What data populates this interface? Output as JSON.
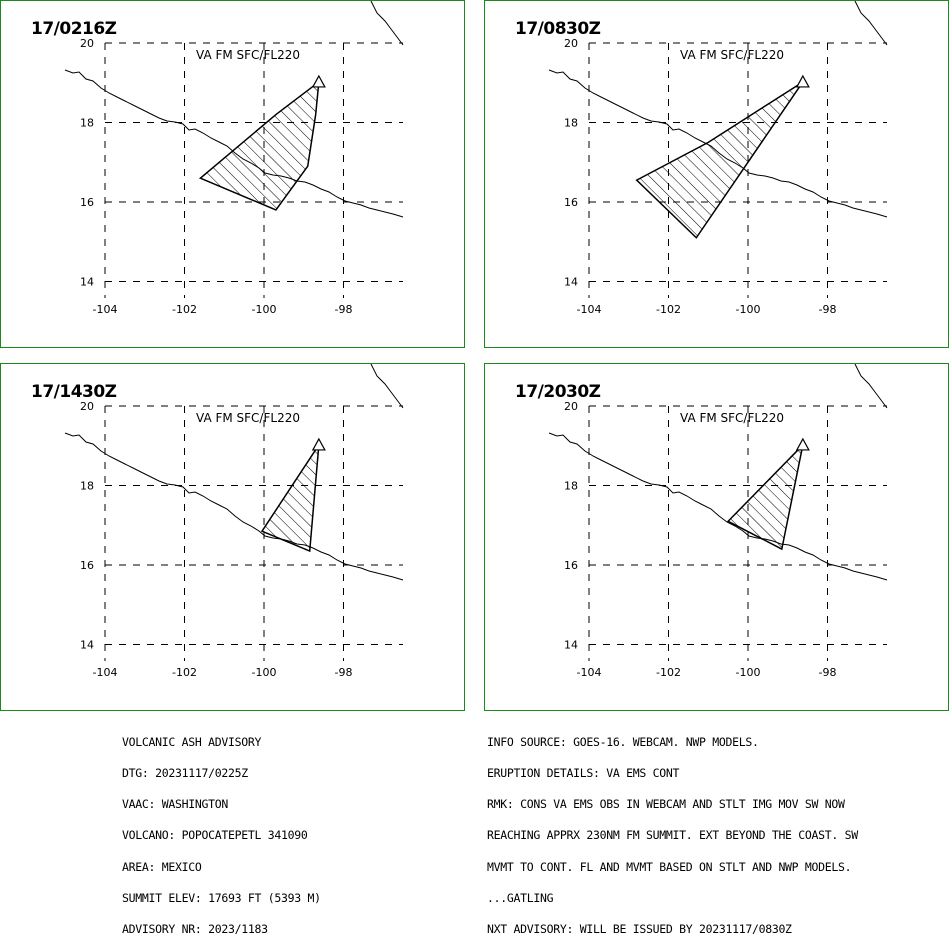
{
  "map": {
    "lat_ticks": [
      "20",
      "18",
      "16",
      "14"
    ],
    "lon_ticks": [
      "-104",
      "-102",
      "-100",
      "-98"
    ],
    "level_label": "VA FM SFC/FL220",
    "volcano_location": {
      "lat": 19.02,
      "lon": -98.62
    },
    "colors": {
      "frame": "#1a8a1a",
      "coast": "#000000",
      "ash": "#000000",
      "grid": "#000000"
    }
  },
  "panels": [
    {
      "time": "17/0216Z",
      "polygon": [
        [
          19.02,
          -98.62
        ],
        [
          18.2,
          -99.7
        ],
        [
          16.6,
          -101.6
        ],
        [
          15.8,
          -99.7
        ],
        [
          16.9,
          -98.9
        ],
        [
          18.2,
          -98.7
        ],
        [
          19.02,
          -98.62
        ]
      ]
    },
    {
      "time": "17/0830Z",
      "polygon": [
        [
          19.02,
          -98.62
        ],
        [
          17.5,
          -101.0
        ],
        [
          16.55,
          -102.8
        ],
        [
          15.1,
          -101.3
        ],
        [
          19.02,
          -98.62
        ]
      ]
    },
    {
      "time": "17/1430Z",
      "polygon": [
        [
          19.02,
          -98.62
        ],
        [
          16.85,
          -100.05
        ],
        [
          16.35,
          -98.85
        ],
        [
          19.02,
          -98.62
        ]
      ]
    },
    {
      "time": "17/2030Z",
      "polygon": [
        [
          19.02,
          -98.62
        ],
        [
          17.1,
          -100.5
        ],
        [
          16.4,
          -99.15
        ],
        [
          19.02,
          -98.62
        ]
      ]
    }
  ],
  "advisory_left": [
    "VOLCANIC ASH ADVISORY",
    "DTG: 20231117/0225Z",
    "VAAC: WASHINGTON",
    "VOLCANO: POPOCATEPETL 341090",
    "AREA: MEXICO",
    "SUMMIT ELEV: 17693 FT (5393 M)",
    "ADVISORY NR: 2023/1183"
  ],
  "advisory_right": [
    "INFO SOURCE: GOES-16. WEBCAM. NWP MODELS.",
    "ERUPTION DETAILS: VA EMS CONT",
    "RMK: CONS VA EMS OBS IN WEBCAM AND STLT IMG MOV SW NOW",
    "REACHING APPRX 230NM FM SUMMIT. EXT BEYOND THE COAST. SW",
    "MVMT TO CONT. FL AND MVMT BASED ON STLT AND NWP MODELS.",
    "...GATLING",
    "NXT ADVISORY: WILL BE ISSUED BY 20231117/0830Z"
  ]
}
